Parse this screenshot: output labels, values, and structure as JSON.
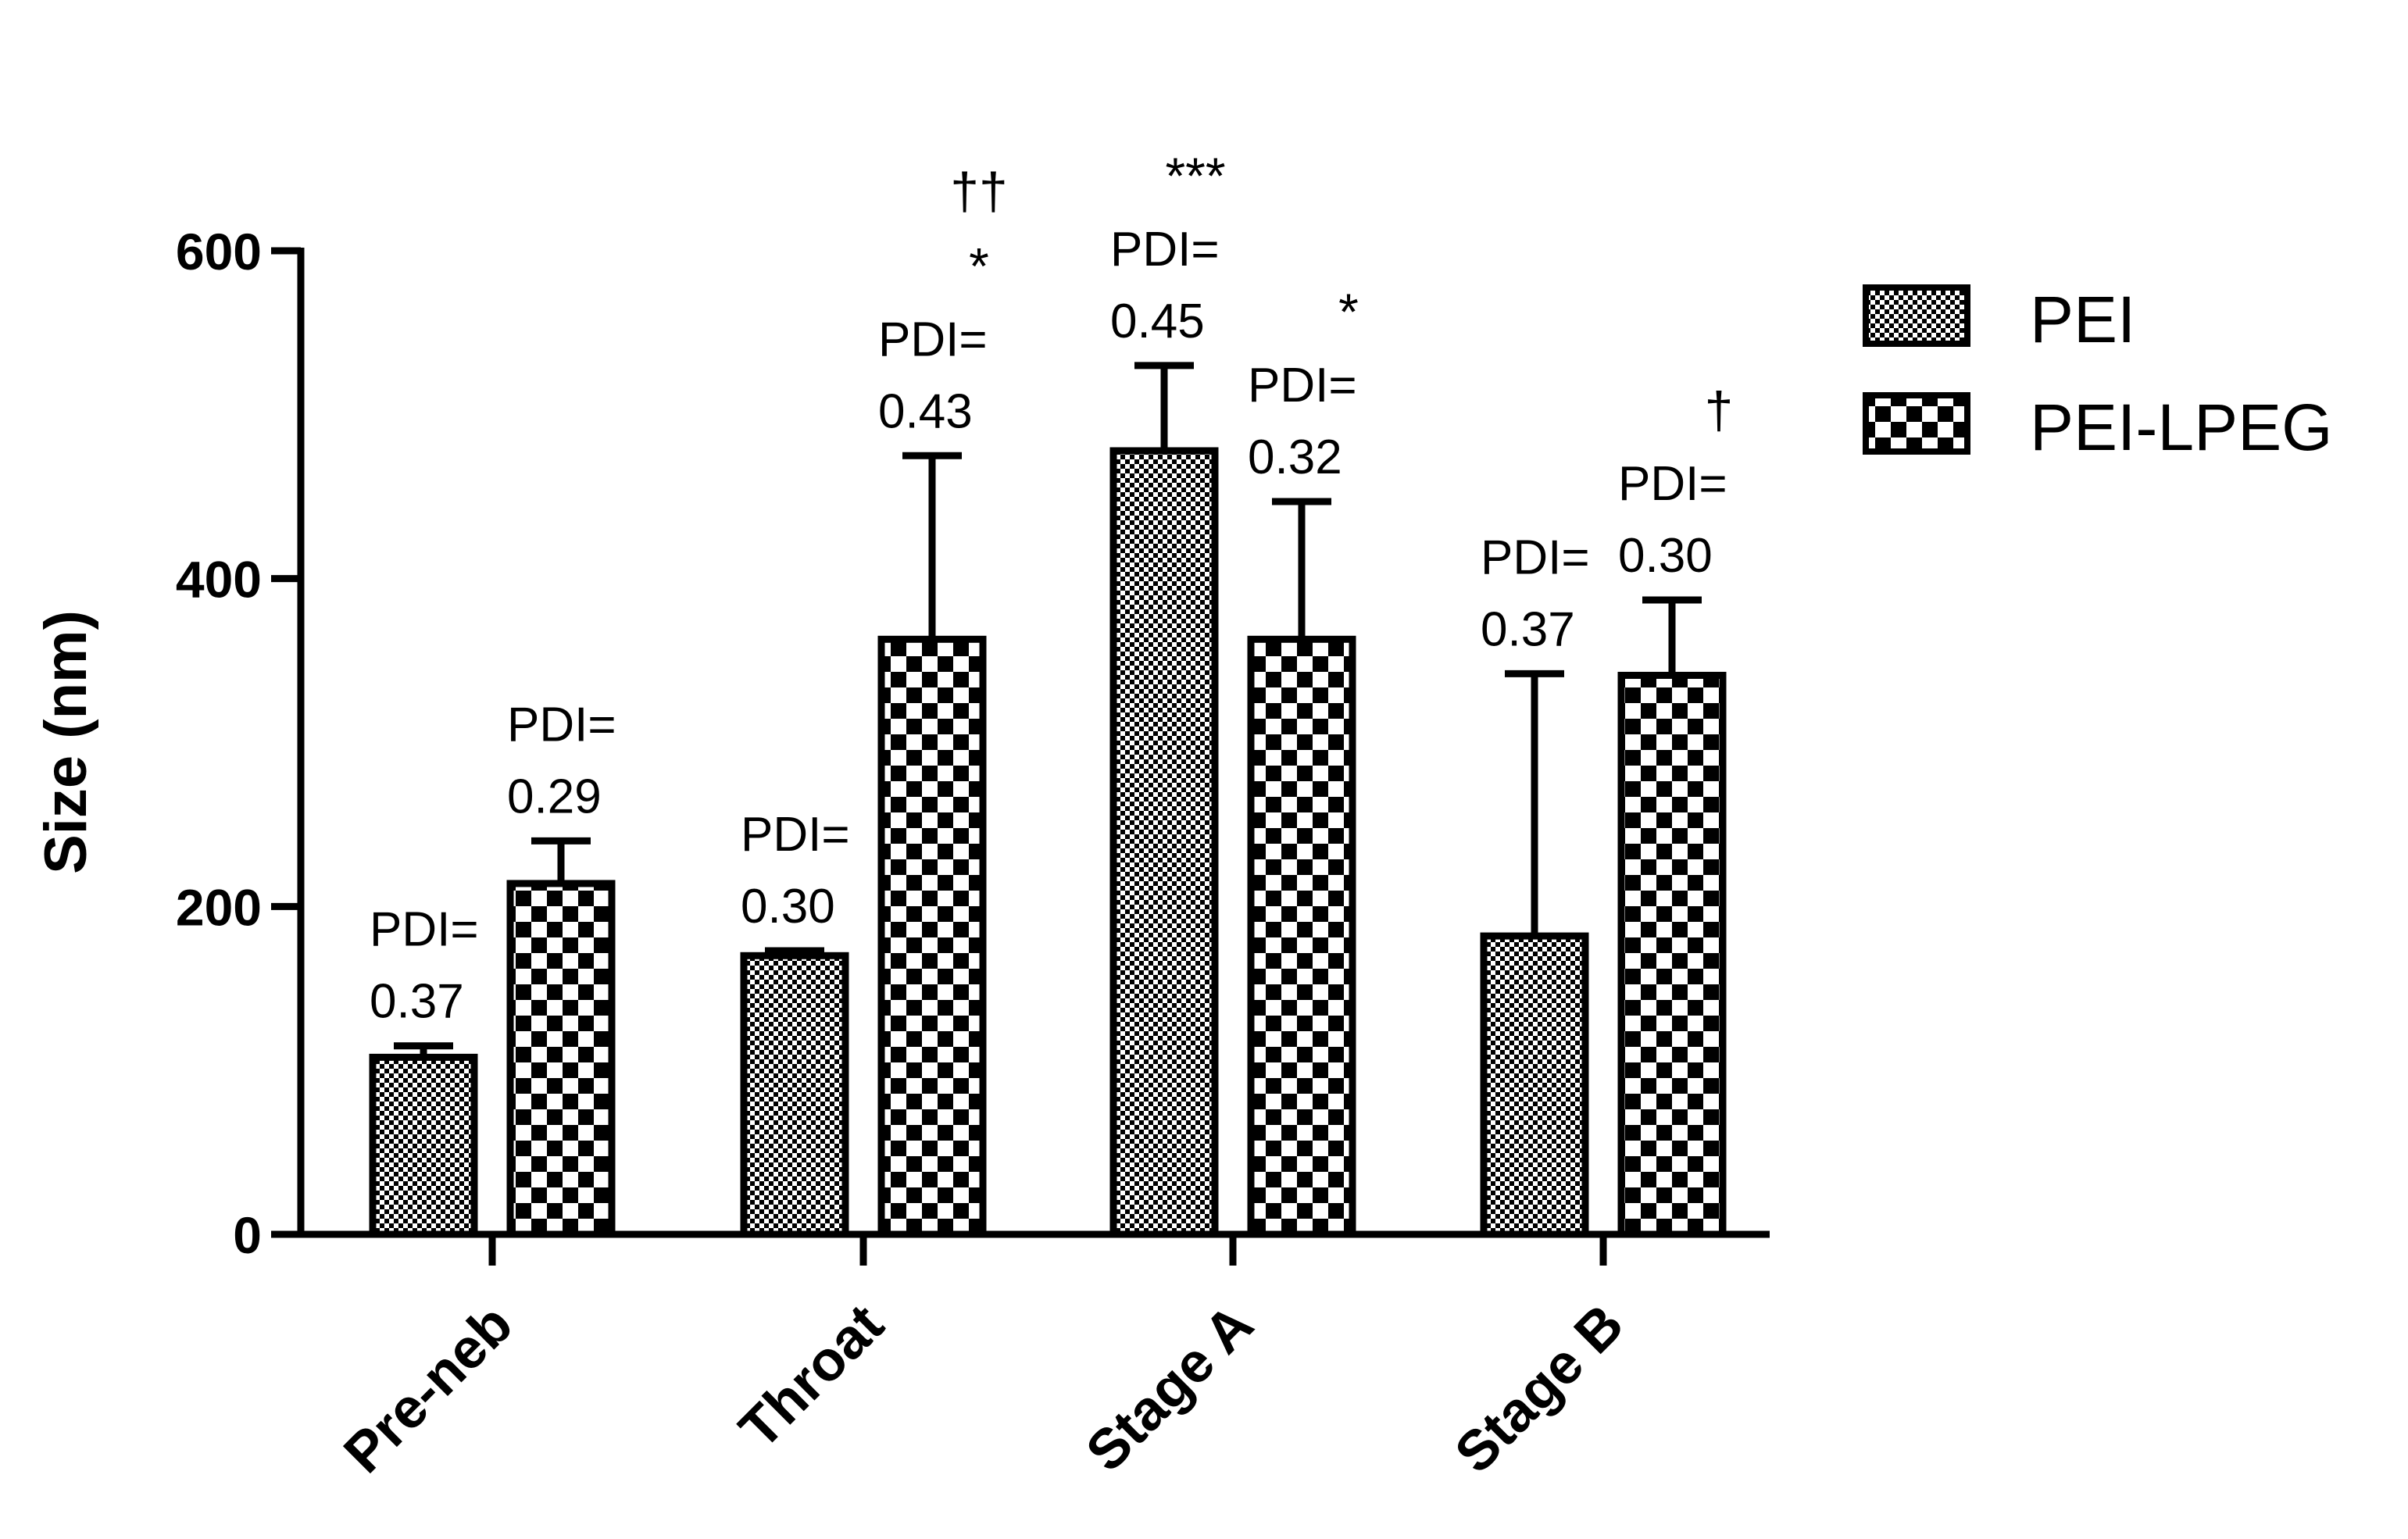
{
  "chart_data": {
    "type": "bar",
    "title": "",
    "xlabel": "",
    "ylabel": "Size (nm)",
    "ylim": [
      0,
      600
    ],
    "yticks": [
      0,
      200,
      400,
      600
    ],
    "categories": [
      "Pre-neb",
      "Throat",
      "Stage A",
      "Stage B"
    ],
    "legend_position": "top-right",
    "grid": false,
    "series": [
      {
        "name": "PEI",
        "pattern": "fine-checker",
        "values": [
          108,
          170,
          478,
          182
        ],
        "errors": [
          7,
          3,
          52,
          160
        ],
        "pdi_labels": [
          "PDI=\n0.37",
          "PDI=\n0.30",
          "PDI=\n0.45",
          "PDI=\n0.37"
        ],
        "significance": [
          "",
          "",
          "***",
          ""
        ]
      },
      {
        "name": "PEI-LPEG",
        "pattern": "coarse-checker",
        "values": [
          214,
          363,
          363,
          341
        ],
        "errors": [
          26,
          112,
          84,
          46
        ],
        "pdi_labels": [
          "PDI=\n0.29",
          "PDI=\n0.43",
          "PDI=\n0.32",
          "PDI=\n0.30"
        ],
        "significance": [
          "",
          "††\n*",
          "*",
          "†"
        ]
      }
    ],
    "colors": {
      "bar_outline": "#000000",
      "pattern_dark": "#000000",
      "pattern_light": "#ffffff"
    }
  }
}
